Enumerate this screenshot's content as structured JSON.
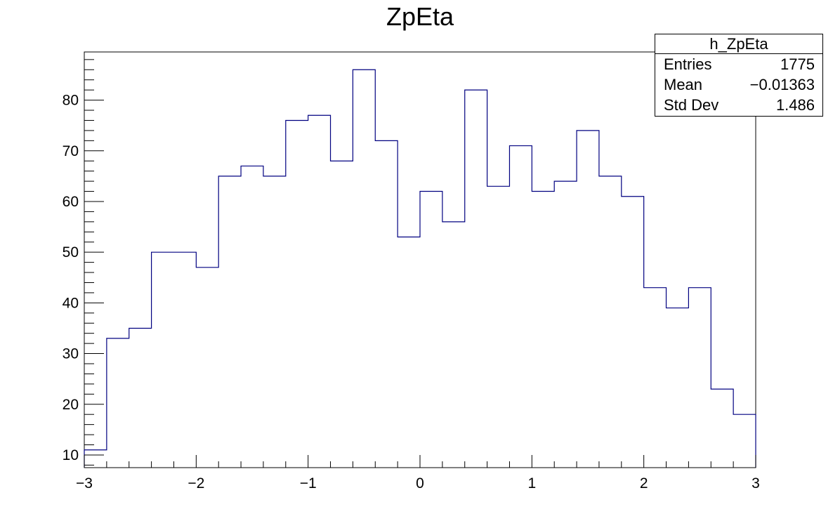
{
  "chart_data": {
    "type": "histogram",
    "title": "ZpEta",
    "xlabel": "",
    "ylabel": "",
    "xlim": [
      -3,
      3
    ],
    "ylim": [
      7.5,
      89.5
    ],
    "bin_width": 0.2,
    "x_ticks": [
      -3,
      -2,
      -1,
      0,
      1,
      2,
      3
    ],
    "x_tick_labels": [
      "−3",
      "−2",
      "−1",
      "0",
      "1",
      "2",
      "3"
    ],
    "y_ticks": [
      10,
      20,
      30,
      40,
      50,
      60,
      70,
      80
    ],
    "y_tick_labels": [
      "10",
      "20",
      "30",
      "40",
      "50",
      "60",
      "70",
      "80"
    ],
    "bins": [
      {
        "x_low": -3.0,
        "x_high": -2.8,
        "count": 11
      },
      {
        "x_low": -2.8,
        "x_high": -2.6,
        "count": 33
      },
      {
        "x_low": -2.6,
        "x_high": -2.4,
        "count": 35
      },
      {
        "x_low": -2.4,
        "x_high": -2.2,
        "count": 50
      },
      {
        "x_low": -2.2,
        "x_high": -2.0,
        "count": 50
      },
      {
        "x_low": -2.0,
        "x_high": -1.8,
        "count": 47
      },
      {
        "x_low": -1.8,
        "x_high": -1.6,
        "count": 65
      },
      {
        "x_low": -1.6,
        "x_high": -1.4,
        "count": 67
      },
      {
        "x_low": -1.4,
        "x_high": -1.2,
        "count": 65
      },
      {
        "x_low": -1.2,
        "x_high": -1.0,
        "count": 76
      },
      {
        "x_low": -1.0,
        "x_high": -0.8,
        "count": 77
      },
      {
        "x_low": -0.8,
        "x_high": -0.6,
        "count": 68
      },
      {
        "x_low": -0.6,
        "x_high": -0.4,
        "count": 86
      },
      {
        "x_low": -0.4,
        "x_high": -0.2,
        "count": 72
      },
      {
        "x_low": -0.2,
        "x_high": 0.0,
        "count": 53
      },
      {
        "x_low": 0.0,
        "x_high": 0.2,
        "count": 62
      },
      {
        "x_low": 0.2,
        "x_high": 0.4,
        "count": 56
      },
      {
        "x_low": 0.4,
        "x_high": 0.6,
        "count": 82
      },
      {
        "x_low": 0.6,
        "x_high": 0.8,
        "count": 63
      },
      {
        "x_low": 0.8,
        "x_high": 1.0,
        "count": 71
      },
      {
        "x_low": 1.0,
        "x_high": 1.2,
        "count": 62
      },
      {
        "x_low": 1.2,
        "x_high": 1.4,
        "count": 64
      },
      {
        "x_low": 1.4,
        "x_high": 1.6,
        "count": 74
      },
      {
        "x_low": 1.6,
        "x_high": 1.8,
        "count": 65
      },
      {
        "x_low": 1.8,
        "x_high": 2.0,
        "count": 61
      },
      {
        "x_low": 2.0,
        "x_high": 2.2,
        "count": 43
      },
      {
        "x_low": 2.2,
        "x_high": 2.4,
        "count": 39
      },
      {
        "x_low": 2.4,
        "x_high": 2.6,
        "count": 43
      },
      {
        "x_low": 2.6,
        "x_high": 2.8,
        "count": 23
      },
      {
        "x_low": 2.8,
        "x_high": 3.0,
        "count": 18
      }
    ],
    "line_color": "#000080",
    "grid": false,
    "stats_box": {
      "name": "h_ZpEta",
      "placement": "top-right",
      "rows": [
        {
          "label": "Entries",
          "value": "1775"
        },
        {
          "label": "Mean",
          "value": "−0.01363"
        },
        {
          "label": "Std Dev",
          "value": "1.486"
        }
      ]
    }
  }
}
